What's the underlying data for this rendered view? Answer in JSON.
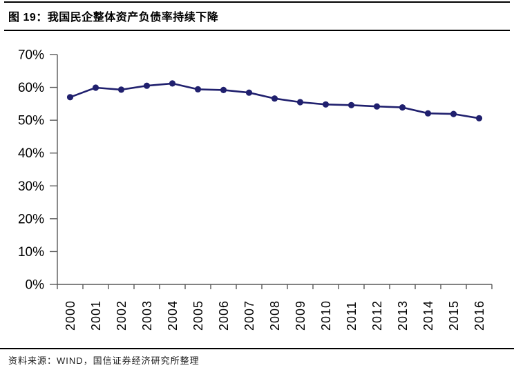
{
  "header": {
    "title": "图 19：我国民企整体资产负债率持续下降"
  },
  "footer": {
    "source": "资料来源：WIND，国信证券经济研究所整理"
  },
  "chart_data": {
    "type": "line",
    "title": "我国民企整体资产负债率持续下降",
    "categories": [
      "2000",
      "2001",
      "2002",
      "2003",
      "2004",
      "2005",
      "2006",
      "2007",
      "2008",
      "2009",
      "2010",
      "2011",
      "2012",
      "2013",
      "2014",
      "2015",
      "2016"
    ],
    "values": [
      57.0,
      59.9,
      59.3,
      60.5,
      61.2,
      59.4,
      59.2,
      58.4,
      56.6,
      55.5,
      54.8,
      54.6,
      54.2,
      53.9,
      52.1,
      51.9,
      50.6
    ],
    "unit": "%",
    "xlabel": "",
    "ylabel": "",
    "ylim": [
      0,
      70
    ],
    "ytick_step": 10,
    "ytick_labels": [
      "0%",
      "10%",
      "20%",
      "30%",
      "40%",
      "50%",
      "60%",
      "70%"
    ],
    "grid": false,
    "legend": "none",
    "line_color": "#20206E",
    "marker": "circle",
    "axis_color": "#595959"
  }
}
